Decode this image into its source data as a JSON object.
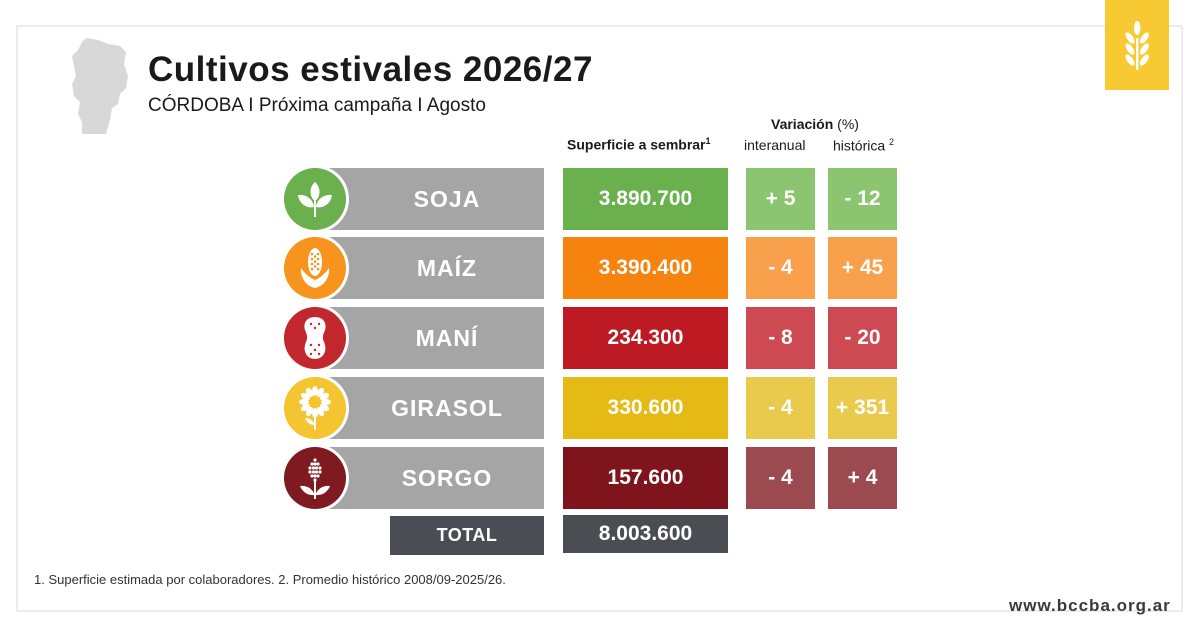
{
  "header": {
    "title": "Cultivos estivales 2026/27",
    "subtitle": "CÓRDOBA I Próxima campaña I Agosto"
  },
  "columns": {
    "area_label": "Superficie a sembrar",
    "area_sup": "1",
    "variation_label": "Variación",
    "variation_unit": "(%)",
    "interannual_label": "interanual",
    "historic_label": "histórica",
    "historic_sup": "2"
  },
  "crops": [
    {
      "name": "SOJA",
      "icon": "soy-sprout-icon",
      "area": "3.890.700",
      "interanual": "+ 5",
      "historica": "- 12",
      "icon_color": "#6ab04c",
      "area_color": "#6ab04c",
      "var_color": "#8cc56f"
    },
    {
      "name": "MAÍZ",
      "icon": "corn-cob-icon",
      "area": "3.390.400",
      "interanual": "- 4",
      "historica": "+ 45",
      "icon_color": "#f7941d",
      "area_color": "#f7830f",
      "var_color": "#f9a04d"
    },
    {
      "name": "MANÍ",
      "icon": "peanut-icon",
      "area": "234.300",
      "interanual": "- 8",
      "historica": "- 20",
      "icon_color": "#c1272d",
      "area_color": "#bd1a24",
      "var_color": "#cd4a52"
    },
    {
      "name": "GIRASOL",
      "icon": "sunflower-icon",
      "area": "330.600",
      "interanual": "- 4",
      "historica": "+ 351",
      "icon_color": "#f4c530",
      "area_color": "#e5ba14",
      "var_color": "#e9ca4c"
    },
    {
      "name": "SORGO",
      "icon": "sorghum-icon",
      "area": "157.600",
      "interanual": "- 4",
      "historica": "+ 4",
      "icon_color": "#7f1a21",
      "area_color": "#7f141c",
      "var_color": "#9b4a50"
    }
  ],
  "total": {
    "label": "TOTAL",
    "value": "8.003.600"
  },
  "footnote": "1. Superficie estimada por colaboradores. 2. Promedio histórico 2008/09-2025/26.",
  "site": "www.bccba.org.ar",
  "colors": {
    "brand": "#f7c933",
    "total_bg": "#4a4e54",
    "bar_gray": "#a5a5a5"
  }
}
